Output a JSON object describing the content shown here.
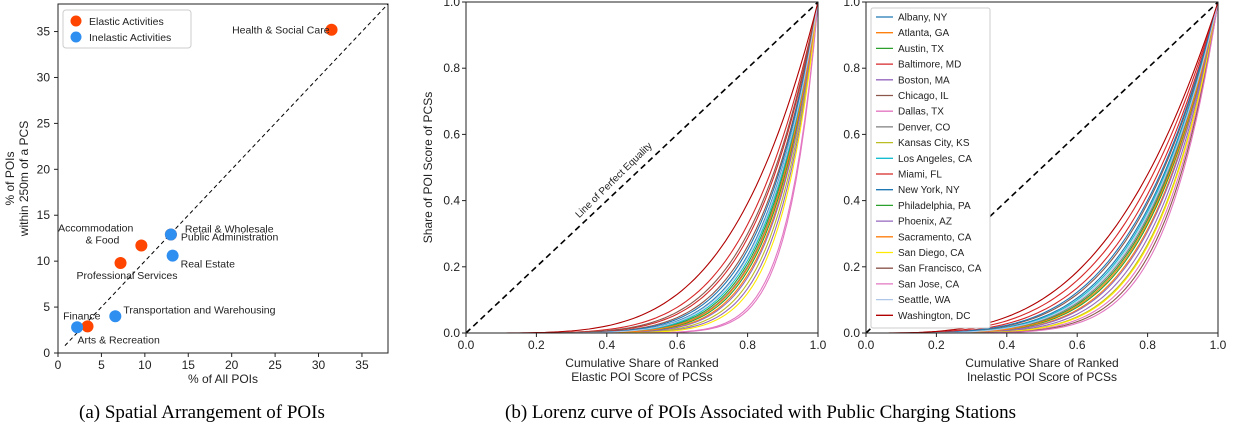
{
  "captions": {
    "a": "(a) Spatial Arrangement of POIs",
    "b": "(b) Lorenz curve of POIs Associated with Public Charging Stations"
  },
  "colors": {
    "elastic": "#FF4500",
    "inelastic": "#2F8FF0",
    "equality_line": "#000000",
    "axes": "#222222"
  },
  "chart_data": [
    {
      "type": "scatter",
      "xlabel": "% of All POIs",
      "ylabel_lines": [
        "% of POIs",
        "within 250m of a PCS"
      ],
      "xlim": [
        0,
        38
      ],
      "ylim": [
        0,
        38
      ],
      "xticks": [
        0,
        5,
        10,
        15,
        20,
        25,
        30,
        35
      ],
      "yticks": [
        0,
        5,
        10,
        15,
        20,
        25,
        30,
        35
      ],
      "legend_position": "top-left",
      "reference_line": "diagonal dashed y = x",
      "series": [
        {
          "name": "Elastic Activities",
          "color": "#FF4500",
          "points": [
            {
              "label": "Health & Social Care",
              "x": 31.5,
              "y": 35.2
            },
            {
              "label": "Retail & Wholesale",
              "x": 13.0,
              "y": 12.9
            },
            {
              "label": "Accommodation & Food",
              "label_lines": [
                "Accommodation",
                "& Food"
              ],
              "x": 9.6,
              "y": 11.7
            },
            {
              "label": "Professional Services",
              "x": 7.2,
              "y": 9.8
            },
            {
              "label": "Arts & Recreation",
              "x": 3.4,
              "y": 2.9
            }
          ]
        },
        {
          "name": "Inelastic Activities",
          "color": "#2F8FF0",
          "points": [
            {
              "label": "Public Administration",
              "x": 13.0,
              "y": 12.9
            },
            {
              "label": "Real Estate",
              "x": 13.2,
              "y": 10.6
            },
            {
              "label": "Transportation and Warehousing",
              "x": 6.6,
              "y": 4.0
            },
            {
              "label": "Finance",
              "x": 2.2,
              "y": 2.8
            }
          ]
        }
      ]
    },
    {
      "type": "line",
      "xlabel_lines": [
        "Cumulative Share of Ranked",
        "Elastic POI Score of PCSs"
      ],
      "ylabel": "Share of POI Score of PCSs",
      "xlim": [
        0,
        1
      ],
      "ylim": [
        0,
        1
      ],
      "xticks": [
        "0.0",
        "0.2",
        "0.4",
        "0.6",
        "0.8",
        "1.0"
      ],
      "yticks": [
        "0.0",
        "0.2",
        "0.4",
        "0.6",
        "0.8",
        "1.0"
      ],
      "annotation": "Line of Perfect Equality",
      "curve_form": "lorenz y = x^k",
      "series": [
        {
          "name": "Albany, NY",
          "color": "#1f77b4",
          "k": 6.5
        },
        {
          "name": "Atlanta, GA",
          "color": "#ff7f0e",
          "k": 7.8
        },
        {
          "name": "Austin, TX",
          "color": "#2ca02c",
          "k": 7.0
        },
        {
          "name": "Baltimore, MD",
          "color": "#d62728",
          "k": 5.0
        },
        {
          "name": "Boston, MA",
          "color": "#9467bd",
          "k": 9.0
        },
        {
          "name": "Chicago, IL",
          "color": "#8c564b",
          "k": 6.0
        },
        {
          "name": "Dallas, TX",
          "color": "#e377c2",
          "k": 11.5
        },
        {
          "name": "Denver, CO",
          "color": "#7f7f7f",
          "k": 7.2
        },
        {
          "name": "Kansas City, KS",
          "color": "#bcbd22",
          "k": 8.5
        },
        {
          "name": "Los Angeles, CA",
          "color": "#17becf",
          "k": 6.8
        },
        {
          "name": "Miami, FL",
          "color": "#d62728",
          "k": 5.6
        },
        {
          "name": "New York, NY",
          "color": "#1f77b4",
          "k": 6.2
        },
        {
          "name": "Philadelphia, PA",
          "color": "#2ca02c",
          "k": 7.5
        },
        {
          "name": "Phoenix, AZ",
          "color": "#9467bd",
          "k": 8.0
        },
        {
          "name": "Sacramento, CA",
          "color": "#ff7f0e",
          "k": 7.3
        },
        {
          "name": "San Diego, CA",
          "color": "#ffea00",
          "k": 9.5
        },
        {
          "name": "San Francisco, CA",
          "color": "#8c564b",
          "k": 5.4
        },
        {
          "name": "San Jose, CA",
          "color": "#e377c2",
          "k": 12.0
        },
        {
          "name": "Seattle, WA",
          "color": "#aec7e8",
          "k": 6.6
        },
        {
          "name": "Washington, DC",
          "color": "#b00000",
          "k": 4.2
        }
      ]
    },
    {
      "type": "line",
      "xlabel_lines": [
        "Cumulative Share of Ranked",
        "Inelastic POI Score of PCSs"
      ],
      "ylabel": "",
      "xlim": [
        0,
        1
      ],
      "ylim": [
        0,
        1
      ],
      "xticks": [
        "0.0",
        "0.2",
        "0.4",
        "0.6",
        "0.8",
        "1.0"
      ],
      "yticks": [
        "0.0",
        "0.2",
        "0.4",
        "0.6",
        "0.8",
        "1.0"
      ],
      "legend_position": "top-left",
      "curve_form": "lorenz y = x^k",
      "series": [
        {
          "name": "Albany, NY",
          "color": "#1f77b4",
          "k": 4.4
        },
        {
          "name": "Atlanta, GA",
          "color": "#ff7f0e",
          "k": 5.2
        },
        {
          "name": "Austin, TX",
          "color": "#2ca02c",
          "k": 4.8
        },
        {
          "name": "Baltimore, MD",
          "color": "#d62728",
          "k": 3.6
        },
        {
          "name": "Boston, MA",
          "color": "#9467bd",
          "k": 5.6
        },
        {
          "name": "Chicago, IL",
          "color": "#8c564b",
          "k": 4.2
        },
        {
          "name": "Dallas, TX",
          "color": "#e377c2",
          "k": 6.3
        },
        {
          "name": "Denver, CO",
          "color": "#7f7f7f",
          "k": 4.7
        },
        {
          "name": "Kansas City, KS",
          "color": "#bcbd22",
          "k": 5.9
        },
        {
          "name": "Los Angeles, CA",
          "color": "#17becf",
          "k": 4.5
        },
        {
          "name": "Miami, FL",
          "color": "#d62728",
          "k": 3.9
        },
        {
          "name": "New York, NY",
          "color": "#1f77b4",
          "k": 4.1
        },
        {
          "name": "Philadelphia, PA",
          "color": "#2ca02c",
          "k": 5.0
        },
        {
          "name": "Phoenix, AZ",
          "color": "#9467bd",
          "k": 5.3
        },
        {
          "name": "Sacramento, CA",
          "color": "#ff7f0e",
          "k": 4.9
        },
        {
          "name": "San Diego, CA",
          "color": "#ffea00",
          "k": 6.0
        },
        {
          "name": "San Francisco, CA",
          "color": "#8c564b",
          "k": 6.6
        },
        {
          "name": "San Jose, CA",
          "color": "#e377c2",
          "k": 6.9
        },
        {
          "name": "Seattle, WA",
          "color": "#aec7e8",
          "k": 4.6
        },
        {
          "name": "Washington, DC",
          "color": "#b00000",
          "k": 3.3
        }
      ]
    }
  ]
}
